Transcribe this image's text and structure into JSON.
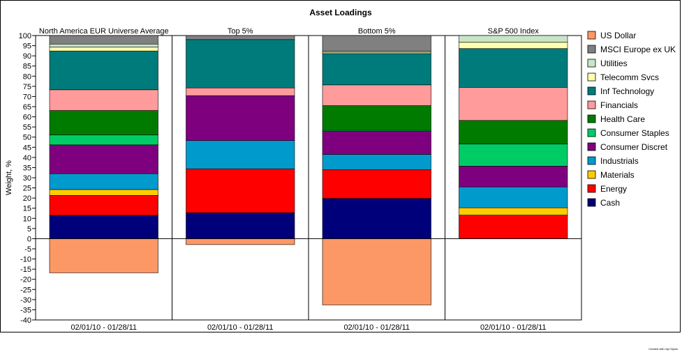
{
  "chart_data": {
    "type": "bar",
    "stacked": true,
    "title": "Asset Loadings",
    "ylabel": "Weight, %",
    "ylim": [
      -40,
      100
    ],
    "yticks": [
      100,
      95,
      90,
      85,
      80,
      75,
      70,
      65,
      60,
      55,
      50,
      45,
      40,
      35,
      30,
      25,
      20,
      15,
      10,
      5,
      0,
      -5,
      -10,
      -15,
      -20,
      -25,
      -30,
      -35,
      -40
    ],
    "grid": false,
    "legend_position": "right",
    "panels": [
      {
        "title": "North America EUR Universe Average",
        "xlabel": "02/01/10 - 01/28/11",
        "values": {
          "Cash": 11.5,
          "Energy": 9.8,
          "Materials": 2.9,
          "Industrials": 7.8,
          "Consumer Discret": 14.2,
          "Consumer Staples": 4.9,
          "Health Care": 12.0,
          "Financials": 10.2,
          "Inf Technology": 19.1,
          "Telecomm Svcs": 2.0,
          "Utilities": 1.4,
          "MSCI Europe ex UK": 4.2,
          "US Dollar": -16.8
        }
      },
      {
        "title": "Top 5%",
        "xlabel": "02/01/10 - 01/28/11",
        "values": {
          "Cash": 12.8,
          "Energy": 21.6,
          "Materials": 0,
          "Industrials": 13.9,
          "Consumer Discret": 22.1,
          "Consumer Staples": 0,
          "Health Care": 0,
          "Financials": 3.8,
          "Inf Technology": 23.8,
          "Telecomm Svcs": 0,
          "Utilities": 0,
          "MSCI Europe ex UK": 2.0,
          "US Dollar": -2.9
        }
      },
      {
        "title": "Bottom 5%",
        "xlabel": "02/01/10 - 01/28/11",
        "values": {
          "Cash": 19.8,
          "Energy": 14.1,
          "Materials": 0,
          "Industrials": 7.6,
          "Consumer Discret": 11.3,
          "Consumer Staples": 0.5,
          "Health Care": 12.2,
          "Financials": 10.2,
          "Inf Technology": 15.4,
          "Telecomm Svcs": 0.6,
          "Utilities": 0.6,
          "MSCI Europe ex UK": 7.7,
          "US Dollar": -32.6
        }
      },
      {
        "title": "S&P 500 Index",
        "xlabel": "02/01/10 - 01/28/11",
        "values": {
          "Cash": 0,
          "Energy": 11.6,
          "Materials": 3.6,
          "Industrials": 10.3,
          "Consumer Discret": 10.2,
          "Consumer Staples": 10.9,
          "Health Care": 11.6,
          "Financials": 16.3,
          "Inf Technology": 19.1,
          "Telecomm Svcs": 3.1,
          "Utilities": 3.3,
          "MSCI Europe ex UK": 0,
          "US Dollar": 0
        }
      }
    ],
    "series": [
      {
        "name": "US Dollar",
        "color": "#fc9865"
      },
      {
        "name": "MSCI Europe ex UK",
        "color": "#808080"
      },
      {
        "name": "Utilities",
        "color": "#c9e5c9"
      },
      {
        "name": "Telecomm Svcs",
        "color": "#ffffad"
      },
      {
        "name": "Inf Technology",
        "color": "#007b7b"
      },
      {
        "name": "Financials",
        "color": "#ff9b9b"
      },
      {
        "name": "Health Care",
        "color": "#007b00"
      },
      {
        "name": "Consumer Staples",
        "color": "#00cc66"
      },
      {
        "name": "Consumer Discret",
        "color": "#7f007f"
      },
      {
        "name": "Industrials",
        "color": "#009acd"
      },
      {
        "name": "Materials",
        "color": "#ffcc00"
      },
      {
        "name": "Energy",
        "color": "#ff0000"
      },
      {
        "name": "Cash",
        "color": "#00007b"
      }
    ],
    "stack_order": [
      "Cash",
      "Energy",
      "Materials",
      "Industrials",
      "Consumer Discret",
      "Consumer Staples",
      "Health Care",
      "Financials",
      "Inf Technology",
      "Telecomm Svcs",
      "Utilities",
      "MSCI Europe ex UK"
    ],
    "credit": "Created with mpi Stylus"
  }
}
